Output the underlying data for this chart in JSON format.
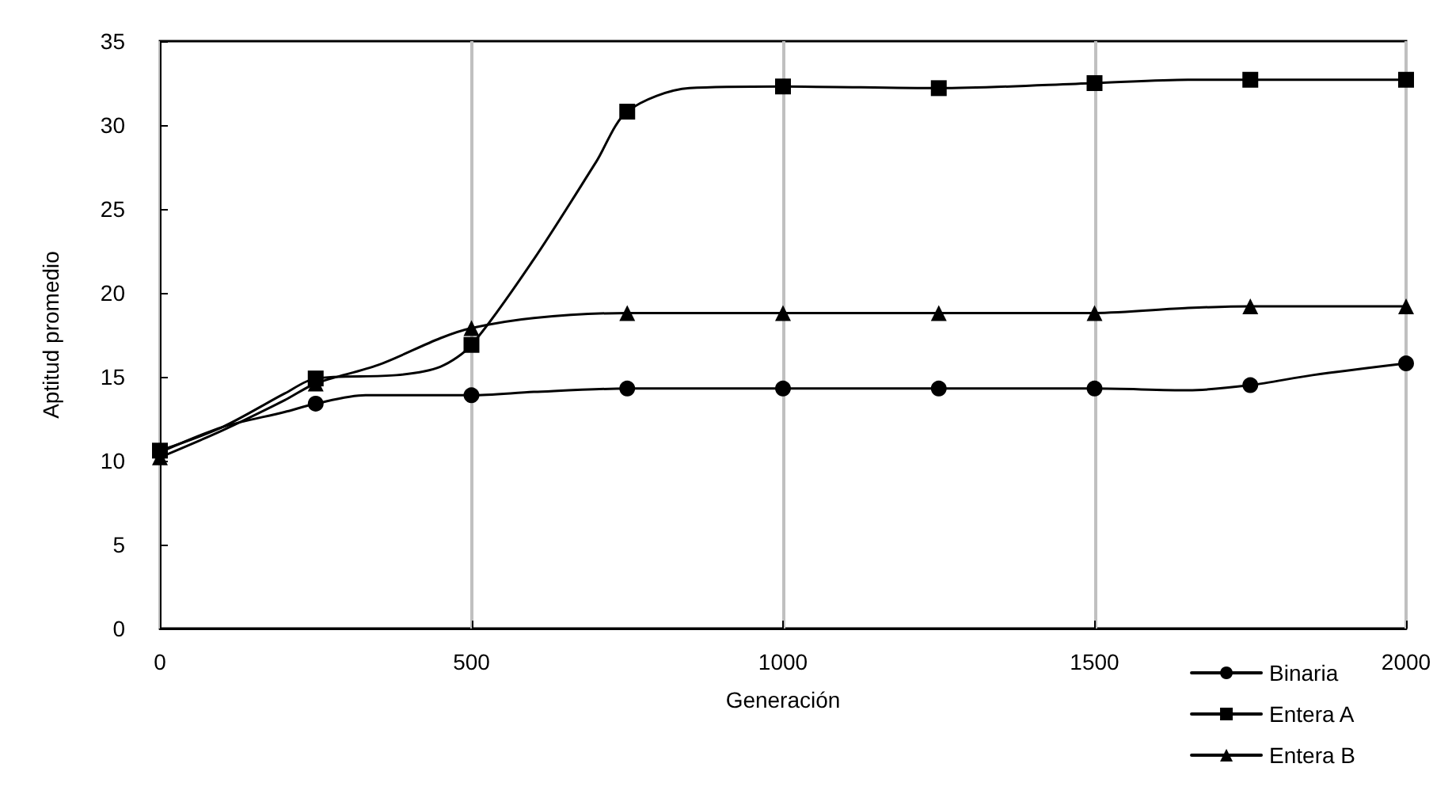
{
  "chart_data": {
    "type": "line",
    "xlabel": "Generación",
    "ylabel": "Aptitud promedio",
    "xlim": [
      0,
      2000
    ],
    "xticks": [
      0,
      500,
      1000,
      1500,
      2000
    ],
    "ylim": [
      0,
      35
    ],
    "yticks": [
      0,
      5,
      10,
      15,
      20,
      25,
      30,
      35
    ],
    "grid": "x",
    "legend": "bottom right",
    "line_style": "solid",
    "series": [
      {
        "name": "Binaria",
        "color": "#000000",
        "marker": "circle",
        "x": [
          0,
          100,
          200,
          250,
          330,
          500,
          600,
          750,
          1000,
          1250,
          1500,
          1650,
          1750,
          1850,
          2000
        ],
        "values": [
          10.5,
          12.0,
          12.9,
          13.4,
          13.9,
          13.9,
          14.1,
          14.3,
          14.3,
          14.3,
          14.3,
          14.2,
          14.5,
          15.1,
          15.8
        ]
      },
      {
        "name": "Entera A",
        "color": "#000000",
        "marker": "square",
        "x": [
          0,
          100,
          200,
          250,
          380,
          450,
          500,
          600,
          700,
          750,
          850,
          1000,
          1250,
          1500,
          1650,
          1750,
          2000
        ],
        "values": [
          10.6,
          12.0,
          14.0,
          14.9,
          15.1,
          15.6,
          16.9,
          22.0,
          27.8,
          30.8,
          32.2,
          32.3,
          32.2,
          32.5,
          32.7,
          32.7,
          32.7
        ]
      },
      {
        "name": "Entera B",
        "color": "#000000",
        "marker": "triangle",
        "x": [
          0,
          100,
          200,
          250,
          350,
          450,
          500,
          600,
          750,
          1000,
          1250,
          1500,
          1650,
          1750,
          2000
        ],
        "values": [
          10.2,
          11.8,
          13.6,
          14.6,
          15.7,
          17.3,
          17.9,
          18.5,
          18.8,
          18.8,
          18.8,
          18.8,
          19.1,
          19.2,
          19.2
        ]
      }
    ]
  }
}
